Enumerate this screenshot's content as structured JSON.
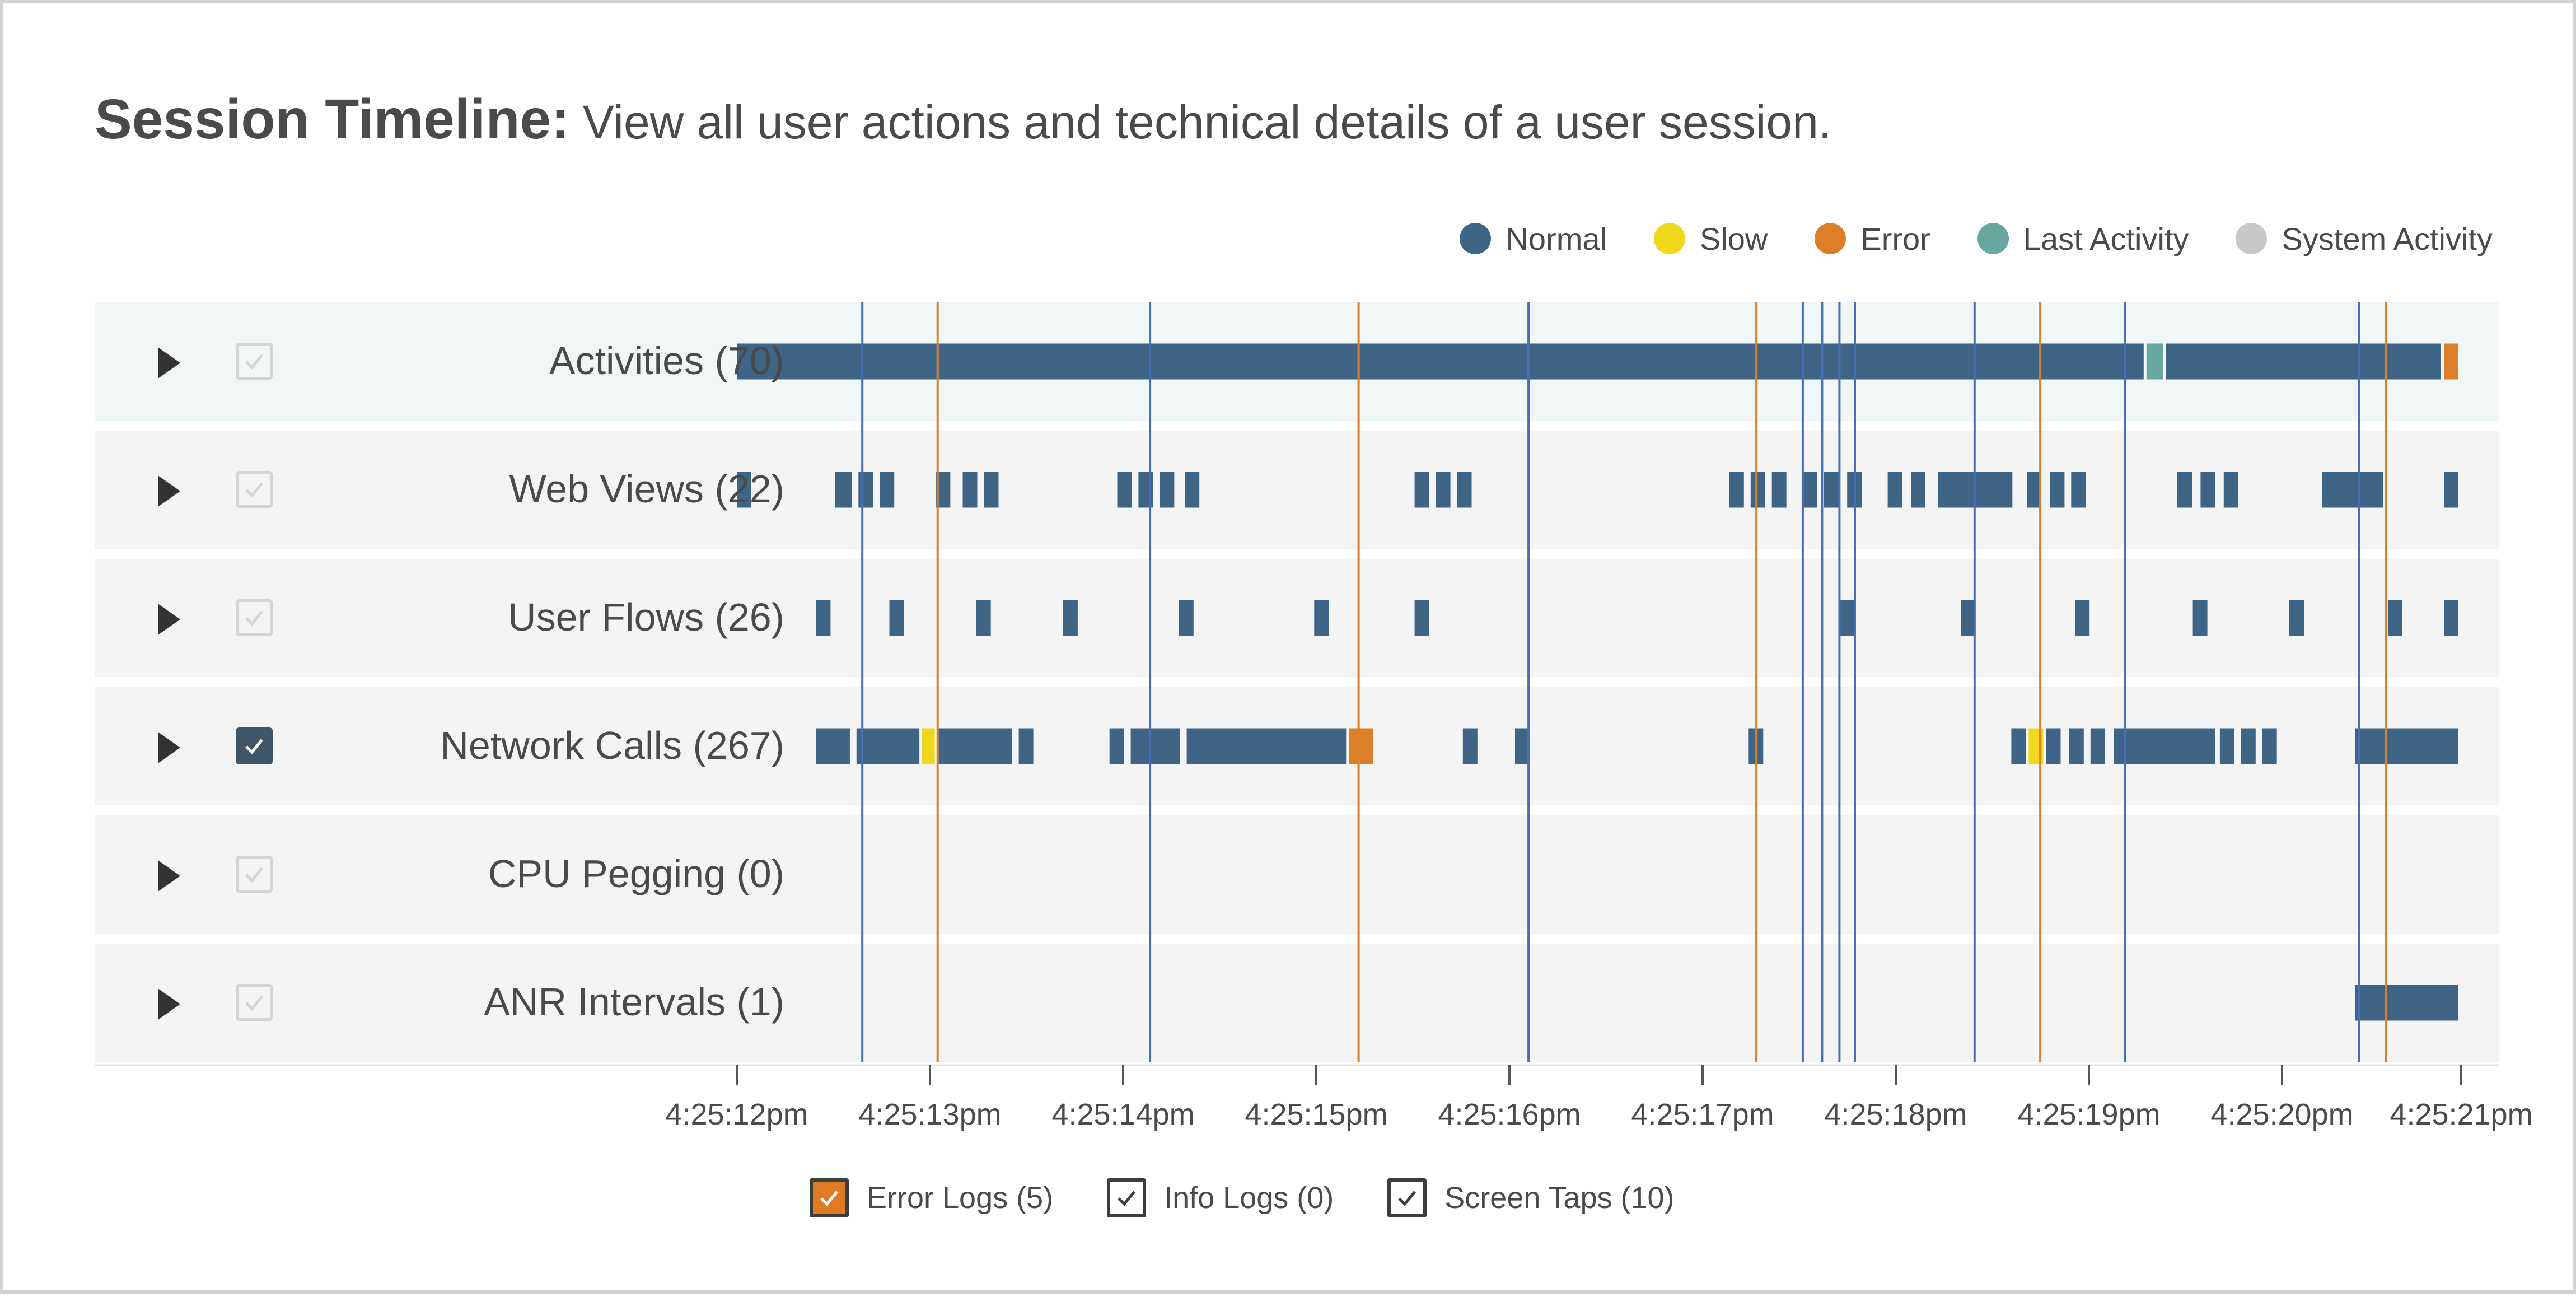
{
  "title": {
    "bold": "Session Timeline:",
    "subtitle": "View all user actions and technical details of a user session."
  },
  "legend": [
    {
      "label": "Normal",
      "color": "#3e6486",
      "icon": "circle"
    },
    {
      "label": "Slow",
      "color": "#f0d81d",
      "icon": "circle"
    },
    {
      "label": "Error",
      "color": "#dd7f28",
      "icon": "circle"
    },
    {
      "label": "Last Activity",
      "color": "#68a6a0",
      "icon": "circle"
    },
    {
      "label": "System Activity",
      "color": "#c8c8c8",
      "icon": "circle"
    }
  ],
  "rows": [
    {
      "label": "Activities (70)",
      "checked": false
    },
    {
      "label": "Web Views (22)",
      "checked": false
    },
    {
      "label": "User Flows (26)",
      "checked": false
    },
    {
      "label": "Network Calls (267)",
      "checked": true
    },
    {
      "label": "CPU Pegging (0)",
      "checked": false
    },
    {
      "label": "ANR Intervals (1)",
      "checked": false
    }
  ],
  "chart_data": {
    "type": "timeline",
    "x_axis": {
      "ticks": [
        "4:25:12pm",
        "4:25:13pm",
        "4:25:14pm",
        "4:25:15pm",
        "4:25:16pm",
        "4:25:17pm",
        "4:25:18pm",
        "4:25:19pm",
        "4:25:20pm",
        "4:25:21pm"
      ],
      "range_seconds": [
        12.0,
        20.93
      ]
    },
    "colors": {
      "normal": "#3e6486",
      "slow": "#f0d81d",
      "error": "#dd7f28",
      "last": "#68a6a0",
      "info_line": "#4a6fb5",
      "error_line": "#d9822b"
    },
    "markers": [
      {
        "t": 12.65,
        "type": "info"
      },
      {
        "t": 13.04,
        "type": "error"
      },
      {
        "t": 14.14,
        "type": "info"
      },
      {
        "t": 15.22,
        "type": "error"
      },
      {
        "t": 16.1,
        "type": "info"
      },
      {
        "t": 17.28,
        "type": "error"
      },
      {
        "t": 17.52,
        "type": "info"
      },
      {
        "t": 17.62,
        "type": "info"
      },
      {
        "t": 17.71,
        "type": "info"
      },
      {
        "t": 17.79,
        "type": "info"
      },
      {
        "t": 18.41,
        "type": "info"
      },
      {
        "t": 18.75,
        "type": "error"
      },
      {
        "t": 19.19,
        "type": "info"
      },
      {
        "t": 20.4,
        "type": "info"
      },
      {
        "t": 20.54,
        "type": "error"
      }
    ],
    "series": [
      {
        "segments": [
          [
            12.0,
            19.3,
            "normal"
          ],
          [
            19.3,
            19.4,
            "last"
          ],
          [
            19.4,
            20.84,
            "normal"
          ],
          [
            20.84,
            20.93,
            "error"
          ]
        ]
      },
      {
        "segments": [
          [
            12.0,
            12.09,
            "normal"
          ],
          [
            12.51,
            12.61,
            "normal"
          ],
          [
            12.63,
            12.72,
            "normal"
          ],
          [
            12.74,
            12.83,
            "normal"
          ],
          [
            13.03,
            13.12,
            "normal"
          ],
          [
            13.17,
            13.26,
            "normal"
          ],
          [
            13.28,
            13.37,
            "normal"
          ],
          [
            13.97,
            14.06,
            "normal"
          ],
          [
            14.08,
            14.17,
            "normal"
          ],
          [
            14.19,
            14.28,
            "normal"
          ],
          [
            14.32,
            14.41,
            "normal"
          ],
          [
            15.51,
            15.6,
            "normal"
          ],
          [
            15.62,
            15.71,
            "normal"
          ],
          [
            15.73,
            15.82,
            "normal"
          ],
          [
            17.14,
            17.23,
            "normal"
          ],
          [
            17.25,
            17.34,
            "normal"
          ],
          [
            17.36,
            17.45,
            "normal"
          ],
          [
            17.52,
            17.61,
            "normal"
          ],
          [
            17.63,
            17.72,
            "normal"
          ],
          [
            17.75,
            17.84,
            "normal"
          ],
          [
            17.96,
            18.05,
            "normal"
          ],
          [
            18.08,
            18.17,
            "normal"
          ],
          [
            18.22,
            18.62,
            "normal"
          ],
          [
            18.68,
            18.77,
            "normal"
          ],
          [
            18.8,
            18.89,
            "normal"
          ],
          [
            18.91,
            19.0,
            "normal"
          ],
          [
            19.46,
            19.55,
            "normal"
          ],
          [
            19.58,
            19.67,
            "normal"
          ],
          [
            19.7,
            19.79,
            "normal"
          ],
          [
            20.21,
            20.54,
            "normal"
          ],
          [
            20.84,
            20.93,
            "normal"
          ]
        ]
      },
      {
        "segments": [
          [
            12.41,
            12.5,
            "normal"
          ],
          [
            12.79,
            12.88,
            "normal"
          ],
          [
            13.24,
            13.33,
            "normal"
          ],
          [
            13.69,
            13.78,
            "normal"
          ],
          [
            14.29,
            14.38,
            "normal"
          ],
          [
            14.99,
            15.08,
            "normal"
          ],
          [
            15.51,
            15.6,
            "normal"
          ],
          [
            17.71,
            17.8,
            "normal"
          ],
          [
            18.34,
            18.43,
            "normal"
          ],
          [
            18.93,
            19.02,
            "normal"
          ],
          [
            19.54,
            19.63,
            "normal"
          ],
          [
            20.04,
            20.13,
            "normal"
          ],
          [
            20.55,
            20.64,
            "normal"
          ],
          [
            20.84,
            20.93,
            "normal"
          ]
        ]
      },
      {
        "segments": [
          [
            12.41,
            12.6,
            "normal"
          ],
          [
            12.62,
            12.96,
            "normal"
          ],
          [
            12.96,
            13.04,
            "slow"
          ],
          [
            13.04,
            13.44,
            "normal"
          ],
          [
            13.46,
            13.55,
            "normal"
          ],
          [
            13.93,
            14.02,
            "normal"
          ],
          [
            14.04,
            14.31,
            "normal"
          ],
          [
            14.33,
            15.17,
            "normal"
          ],
          [
            15.17,
            15.31,
            "error"
          ],
          [
            15.76,
            15.85,
            "normal"
          ],
          [
            16.03,
            16.12,
            "normal"
          ],
          [
            17.24,
            17.33,
            "normal"
          ],
          [
            18.6,
            18.69,
            "normal"
          ],
          [
            18.69,
            18.78,
            "slow"
          ],
          [
            18.78,
            18.87,
            "normal"
          ],
          [
            18.9,
            18.99,
            "normal"
          ],
          [
            19.01,
            19.1,
            "normal"
          ],
          [
            19.13,
            19.67,
            "normal"
          ],
          [
            19.68,
            19.77,
            "normal"
          ],
          [
            19.79,
            19.88,
            "normal"
          ],
          [
            19.9,
            19.99,
            "normal"
          ],
          [
            20.38,
            20.93,
            "normal"
          ]
        ]
      },
      {
        "segments": []
      },
      {
        "segments": [
          [
            20.38,
            20.93,
            "normal"
          ]
        ]
      }
    ]
  },
  "filters": [
    {
      "label": "Error Logs (5)",
      "checked": true,
      "style": "error"
    },
    {
      "label": "Info Logs (0)",
      "checked": true,
      "style": "normal"
    },
    {
      "label": "Screen Taps (10)",
      "checked": true,
      "style": "normal"
    }
  ]
}
